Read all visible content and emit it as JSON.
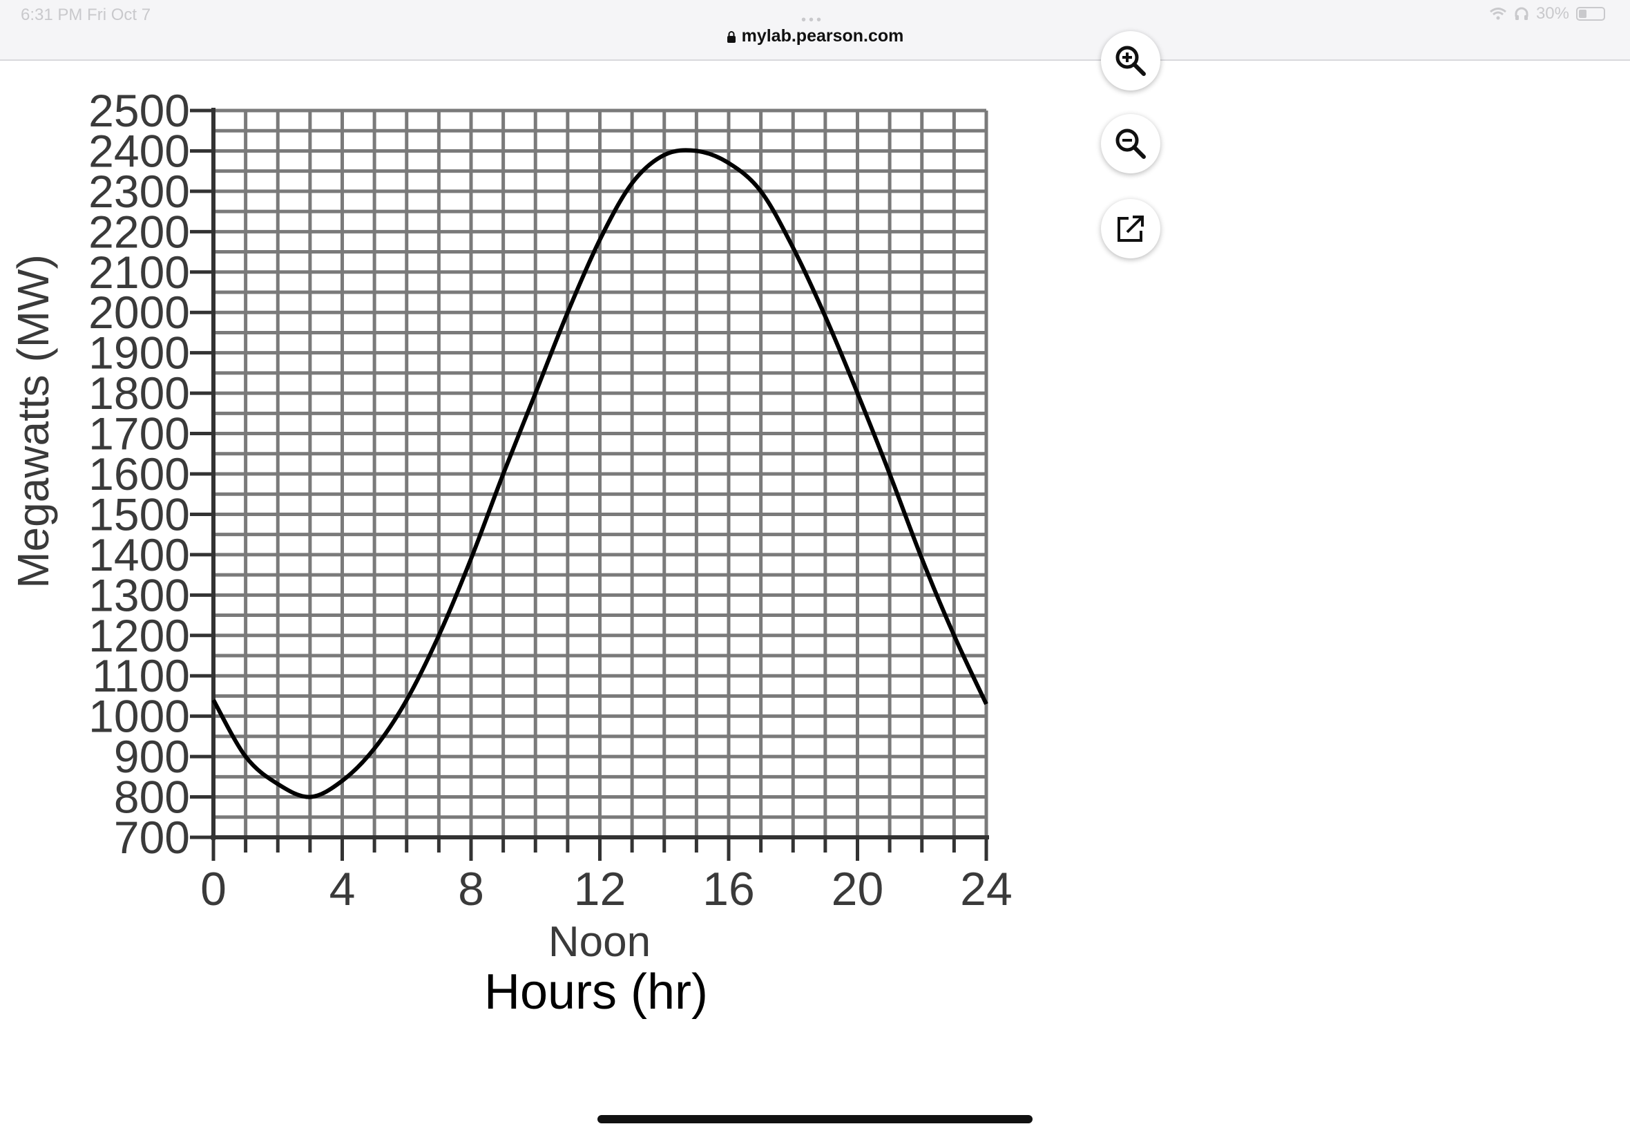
{
  "status_bar": {
    "time": "6:31 PM  Fri Oct 7",
    "battery": "30%"
  },
  "browser": {
    "url": "mylab.pearson.com"
  },
  "toolbar": {
    "zoom_in_icon": "zoom-in-icon",
    "zoom_out_icon": "zoom-out-icon",
    "open_external_icon": "open-external-icon"
  },
  "chart_data": {
    "type": "line",
    "title": "",
    "xlabel": "Hours (hr)",
    "x_annotation": "Noon",
    "ylabel": "Megawatts (MW)",
    "xlim": [
      0,
      24
    ],
    "ylim": [
      700,
      2500
    ],
    "x_ticks": [
      "0",
      "4",
      "8",
      "12",
      "16",
      "20",
      "24"
    ],
    "y_ticks": [
      "700",
      "800",
      "900",
      "1000",
      "1100",
      "1200",
      "1300",
      "1400",
      "1500",
      "1600",
      "1700",
      "1800",
      "1900",
      "2000",
      "2100",
      "2200",
      "2300",
      "2400",
      "2500"
    ],
    "grid": true,
    "series": [
      {
        "x": [
          0,
          1,
          2,
          3,
          4,
          5,
          6,
          7,
          8,
          9,
          10,
          11,
          12,
          13,
          14,
          15,
          16,
          17,
          18,
          19,
          20,
          21,
          22,
          23,
          24
        ],
        "y": [
          1040,
          900,
          832,
          800,
          840,
          920,
          1040,
          1200,
          1390,
          1600,
          1800,
          2000,
          2180,
          2320,
          2390,
          2400,
          2370,
          2300,
          2160,
          1990,
          1800,
          1600,
          1390,
          1200,
          1030
        ]
      }
    ],
    "colors": {
      "curve": "#000000",
      "grid": "#7a7a7a",
      "axis": "#333333",
      "labels": "#3a3a3a"
    }
  }
}
